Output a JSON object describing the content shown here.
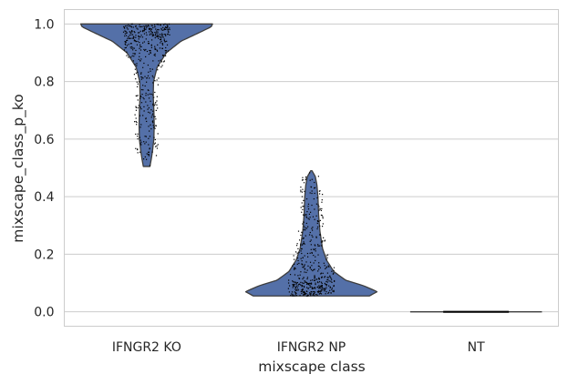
{
  "chart_data": {
    "type": "violin",
    "title": "",
    "xlabel": "mixscape class",
    "ylabel": "mixscape_class_p_ko",
    "categories": [
      "IFNGR2 KO",
      "IFNGR2 NP",
      "NT"
    ],
    "ylim": [
      -0.05,
      1.05
    ],
    "yticks": [
      0.0,
      0.2,
      0.4,
      0.6,
      0.8,
      1.0
    ],
    "ytick_labels": [
      "0.0",
      "0.2",
      "0.4",
      "0.6",
      "0.8",
      "1.0"
    ],
    "grid": "horizontal",
    "legend": "none",
    "violin_color": "#5470a8",
    "edge_color": "#3d3d3d",
    "point_color": "#000000",
    "grid_color": "#cccccc",
    "violins": [
      {
        "category": "IFNGR2 KO",
        "min": 0.505,
        "max": 1.0,
        "density_profile": [
          [
            0.505,
            0.05
          ],
          [
            0.53,
            0.07
          ],
          [
            0.56,
            0.09
          ],
          [
            0.6,
            0.11
          ],
          [
            0.65,
            0.115
          ],
          [
            0.7,
            0.11
          ],
          [
            0.75,
            0.1
          ],
          [
            0.8,
            0.105
          ],
          [
            0.85,
            0.16
          ],
          [
            0.9,
            0.3
          ],
          [
            0.94,
            0.52
          ],
          [
            0.97,
            0.8
          ],
          [
            0.99,
            0.98
          ],
          [
            1.0,
            1.0
          ]
        ]
      },
      {
        "category": "IFNGR2 NP",
        "min": 0.055,
        "max": 0.49,
        "density_profile": [
          [
            0.055,
            0.88
          ],
          [
            0.07,
            1.0
          ],
          [
            0.09,
            0.8
          ],
          [
            0.11,
            0.52
          ],
          [
            0.14,
            0.34
          ],
          [
            0.18,
            0.23
          ],
          [
            0.22,
            0.17
          ],
          [
            0.28,
            0.13
          ],
          [
            0.34,
            0.11
          ],
          [
            0.4,
            0.1
          ],
          [
            0.44,
            0.085
          ],
          [
            0.47,
            0.06
          ],
          [
            0.49,
            0.01
          ]
        ]
      },
      {
        "category": "NT",
        "min": 0.0,
        "max": 0.0,
        "density_profile": [
          [
            0.0,
            1.0
          ]
        ]
      }
    ]
  }
}
